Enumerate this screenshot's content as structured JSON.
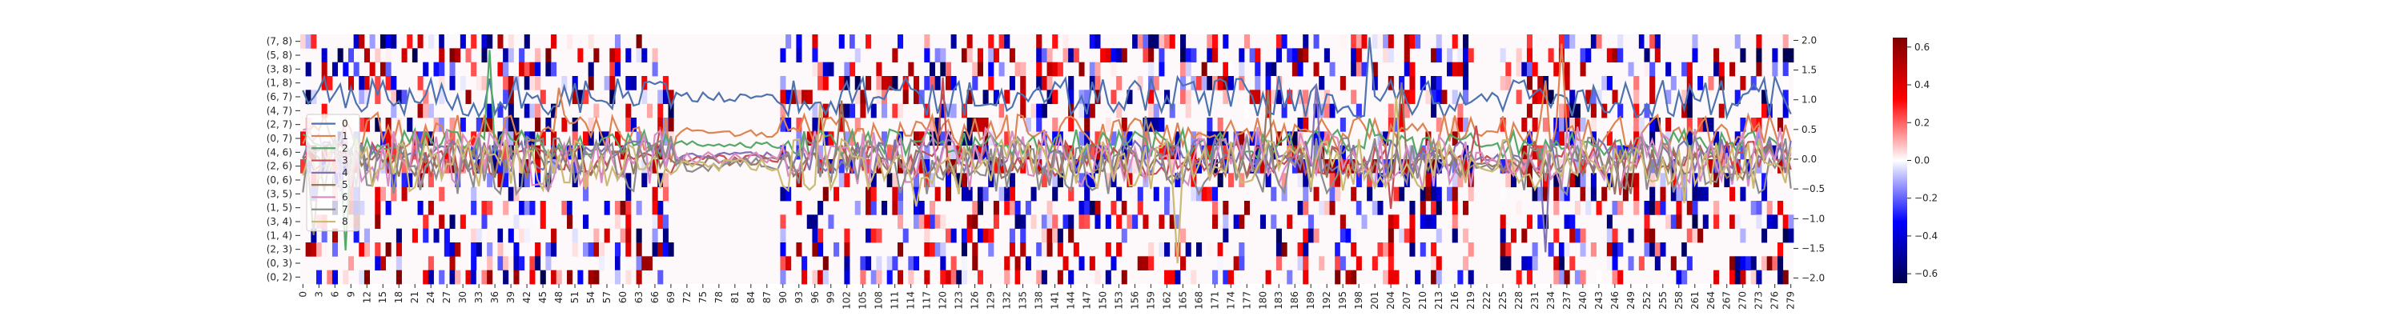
{
  "chart_data": {
    "type": "heatmap",
    "title": "",
    "heatmap": {
      "row_labels": [
        "(7, 8)",
        "(5, 8)",
        "(3, 8)",
        "(1, 8)",
        "(6, 7)",
        "(4, 7)",
        "(2, 7)",
        "(0, 7)",
        "(4, 6)",
        "(2, 6)",
        "(0, 6)",
        "(3, 5)",
        "(1, 5)",
        "(3, 4)",
        "(1, 4)",
        "(2, 3)",
        "(0, 3)",
        "(0, 2)"
      ],
      "n_columns": 280,
      "x_tick_labels": [
        "0",
        "3",
        "6",
        "9",
        "12",
        "15",
        "18",
        "21",
        "24",
        "27",
        "30",
        "33",
        "36",
        "39",
        "42",
        "45",
        "48",
        "51",
        "54",
        "57",
        "60",
        "63",
        "66",
        "69",
        "72",
        "75",
        "78",
        "81",
        "84",
        "87",
        "90",
        "93",
        "96",
        "99",
        "102",
        "105",
        "108",
        "111",
        "114",
        "117",
        "120",
        "123",
        "126",
        "129",
        "132",
        "135",
        "138",
        "141",
        "144",
        "147",
        "150",
        "153",
        "156",
        "159",
        "162",
        "165",
        "168",
        "171",
        "174",
        "177",
        "180",
        "183",
        "186",
        "189",
        "192",
        "195",
        "198",
        "201",
        "204",
        "207",
        "210",
        "213",
        "216",
        "219",
        "222",
        "225",
        "228",
        "231",
        "234",
        "237",
        "240",
        "243",
        "246",
        "249",
        "252",
        "255",
        "258",
        "261",
        "264",
        "267",
        "270",
        "273",
        "276",
        "279"
      ],
      "x_tick_step": 3,
      "active_column_ranges": [
        [
          0,
          70
        ],
        [
          90,
          220
        ],
        [
          225,
          280
        ]
      ],
      "cell_density": 0.32,
      "value_range": [
        -0.65,
        0.65
      ],
      "zero_color": "#fdf8f9"
    },
    "colorbar": {
      "vmin": -0.65,
      "vmax": 0.65,
      "ticks": [
        -0.6,
        -0.4,
        -0.2,
        0.0,
        0.2,
        0.4,
        0.6
      ],
      "tick_labels": [
        "−0.6",
        "−0.4",
        "−0.2",
        "0.0",
        "0.2",
        "0.4",
        "0.6"
      ],
      "colors": [
        "#00004c",
        "#0000ff",
        "#ffffff",
        "#ff0000",
        "#7f0000"
      ]
    },
    "line_overlay": {
      "y_axis": "right",
      "ylim": [
        -2.1,
        2.1
      ],
      "ticks": [
        -2.0,
        -1.5,
        -1.0,
        -0.5,
        0.0,
        0.5,
        1.0,
        1.5,
        2.0
      ],
      "tick_labels": [
        "−2.0",
        "−1.5",
        "−1.0",
        "−0.5",
        "0.0",
        "0.5",
        "1.0",
        "1.5",
        "2.0"
      ],
      "series": [
        {
          "name": "0",
          "color": "#4c72b0",
          "level": 1.05,
          "jitter": 0.35
        },
        {
          "name": "1",
          "color": "#dd8452",
          "level": 0.45,
          "jitter": 0.3
        },
        {
          "name": "2",
          "color": "#55a868",
          "level": 0.25,
          "jitter": 0.25
        },
        {
          "name": "3",
          "color": "#c44e52",
          "level": 0.0,
          "jitter": 0.3
        },
        {
          "name": "4",
          "color": "#8172b3",
          "level": 0.05,
          "jitter": 0.3
        },
        {
          "name": "5",
          "color": "#937860",
          "level": -0.05,
          "jitter": 0.3
        },
        {
          "name": "6",
          "color": "#da8bc3",
          "level": 0.0,
          "jitter": 0.55
        },
        {
          "name": "7",
          "color": "#8c8c8c",
          "level": -0.1,
          "jitter": 0.5
        },
        {
          "name": "8",
          "color": "#ccb974",
          "level": -0.1,
          "jitter": 0.45
        }
      ]
    },
    "legend": {
      "placement": "left-inside",
      "entries": [
        "0",
        "1",
        "2",
        "3",
        "4",
        "5",
        "6",
        "7",
        "8"
      ]
    }
  }
}
